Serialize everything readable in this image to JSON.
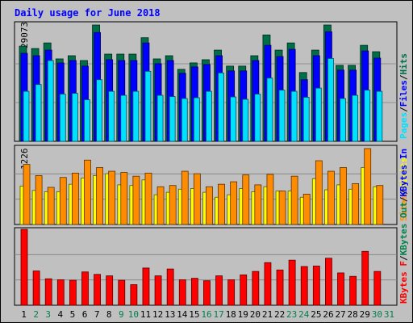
{
  "title": "Daily usage for June 2018",
  "colors": {
    "background": "#c0c0c0",
    "title": "#0000ff",
    "hits": "#006f48",
    "files": "#0000ff",
    "pages": "#00e0ff",
    "visits": "#ffff00",
    "sites": "#ff8c00",
    "kbytes": "#ff0000",
    "weekday_tick": "#000000",
    "weekend_tick": "#00804a"
  },
  "chart_data": [
    {
      "type": "bar",
      "panel": "pages-files-hits",
      "axis_max_label": "29073",
      "ylim": [
        0,
        29073
      ],
      "series_labels": [
        "Pages",
        "/",
        "Files",
        "/",
        "Hits"
      ],
      "categories": [
        "1",
        "2",
        "3",
        "4",
        "5",
        "6",
        "7",
        "8",
        "9",
        "10",
        "11",
        "12",
        "13",
        "14",
        "15",
        "16",
        "17",
        "18",
        "19",
        "20",
        "21",
        "22",
        "23",
        "24",
        "25",
        "26",
        "27",
        "28",
        "29",
        "30"
      ],
      "series": [
        {
          "name": "Hits",
          "values": [
            23800,
            23200,
            24600,
            20600,
            21400,
            20200,
            29073,
            21800,
            21800,
            21800,
            25900,
            20600,
            21400,
            18000,
            19600,
            20400,
            22800,
            18800,
            18800,
            21400,
            26600,
            22800,
            24600,
            17200,
            22800,
            29073,
            19000,
            19000,
            24000,
            22400
          ]
        },
        {
          "name": "Files",
          "values": [
            22000,
            21400,
            22800,
            19600,
            20200,
            18800,
            27200,
            20400,
            20200,
            20200,
            24600,
            19400,
            20200,
            17000,
            18600,
            19200,
            21400,
            17600,
            17600,
            20200,
            24000,
            21200,
            23000,
            15400,
            21400,
            27400,
            17800,
            17800,
            22600,
            20800
          ]
        },
        {
          "name": "Pages",
          "values": [
            12500,
            14200,
            20200,
            11800,
            12000,
            10400,
            15400,
            12500,
            11500,
            12500,
            17500,
            11500,
            11200,
            10700,
            10900,
            12500,
            17100,
            11100,
            10500,
            11800,
            15800,
            12800,
            12500,
            11000,
            13300,
            20700,
            10700,
            11500,
            12800,
            12500
          ]
        }
      ]
    },
    {
      "type": "bar",
      "panel": "visits-sites",
      "axis_max_label": "1226",
      "ylim": [
        0,
        1226
      ],
      "series_labels": [
        "Visits",
        "/",
        "Sites"
      ],
      "categories": [
        "1",
        "2",
        "3",
        "4",
        "5",
        "6",
        "7",
        "8",
        "9",
        "10",
        "11",
        "12",
        "13",
        "14",
        "15",
        "16",
        "17",
        "18",
        "19",
        "20",
        "21",
        "22",
        "23",
        "24",
        "25",
        "26",
        "27",
        "28",
        "29",
        "30"
      ],
      "series": [
        {
          "name": "Sites",
          "values": [
            970,
            790,
            600,
            760,
            830,
            1040,
            920,
            860,
            840,
            780,
            830,
            610,
            630,
            860,
            820,
            610,
            650,
            690,
            800,
            640,
            810,
            540,
            780,
            490,
            1030,
            860,
            920,
            660,
            1226,
            630
          ]
        },
        {
          "name": "Visits",
          "values": [
            620,
            550,
            530,
            530,
            650,
            750,
            790,
            820,
            640,
            630,
            720,
            480,
            520,
            570,
            580,
            520,
            440,
            480,
            580,
            530,
            610,
            540,
            540,
            440,
            740,
            560,
            640,
            570,
            920,
            610
          ]
        }
      ]
    },
    {
      "type": "bar",
      "panel": "kbytes",
      "axis_max_label": "1549653",
      "ylim": [
        0,
        1549653
      ],
      "series_labels": [
        "KBytes",
        "/",
        "KBytes In",
        "/",
        "KBytes Out",
        "/",
        "KBytes F"
      ],
      "categories": [
        "1",
        "2",
        "3",
        "4",
        "5",
        "6",
        "7",
        "8",
        "9",
        "10",
        "11",
        "12",
        "13",
        "14",
        "15",
        "16",
        "17",
        "18",
        "19",
        "20",
        "21",
        "22",
        "23",
        "24",
        "25",
        "26",
        "27",
        "28",
        "29",
        "30"
      ],
      "series": [
        {
          "name": "KBytes F",
          "values": [
            1549653,
            700000,
            540000,
            520000,
            510000,
            680000,
            630000,
            600000,
            510000,
            420000,
            760000,
            600000,
            740000,
            520000,
            550000,
            500000,
            600000,
            520000,
            620000,
            690000,
            870000,
            720000,
            920000,
            790000,
            800000,
            960000,
            660000,
            590000,
            1100000,
            690000
          ]
        }
      ]
    }
  ],
  "x_tick_labels": [
    "1",
    "2",
    "3",
    "4",
    "5",
    "6",
    "7",
    "8",
    "9",
    "10",
    "11",
    "12",
    "13",
    "14",
    "15",
    "16",
    "17",
    "18",
    "19",
    "20",
    "21",
    "22",
    "23",
    "24",
    "25",
    "26",
    "27",
    "28",
    "29",
    "30",
    "31"
  ],
  "weekend_days": [
    "2",
    "3",
    "9",
    "10",
    "16",
    "17",
    "23",
    "24",
    "30",
    "31"
  ]
}
